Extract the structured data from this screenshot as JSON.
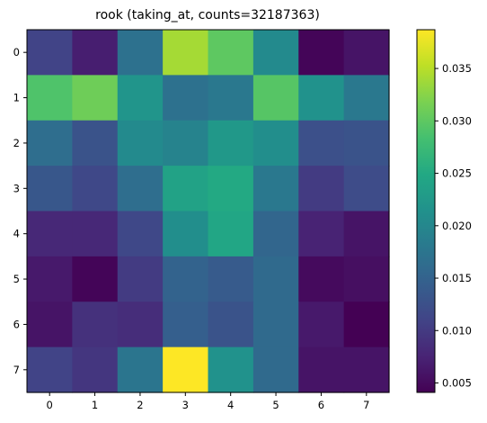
{
  "chart_data": {
    "type": "heatmap",
    "title": "rook (taking_at, counts=32187363)",
    "xlabel": "",
    "ylabel": "",
    "colormap": "viridis",
    "x_ticks": [
      "0",
      "1",
      "2",
      "3",
      "4",
      "5",
      "6",
      "7"
    ],
    "y_ticks": [
      "0",
      "1",
      "2",
      "3",
      "4",
      "5",
      "6",
      "7"
    ],
    "color_range": [
      0.0041,
      0.0387
    ],
    "colorbar_ticks": [
      0.005,
      0.01,
      0.015,
      0.02,
      0.025,
      0.03,
      0.035
    ],
    "colorbar_tick_labels": [
      "0.005",
      "0.010",
      "0.015",
      "0.020",
      "0.025",
      "0.030",
      "0.035"
    ],
    "values": [
      [
        0.011,
        0.007,
        0.017,
        0.034,
        0.03,
        0.0205,
        0.0045,
        0.006
      ],
      [
        0.029,
        0.031,
        0.022,
        0.017,
        0.018,
        0.0295,
        0.0215,
        0.018
      ],
      [
        0.0165,
        0.013,
        0.0205,
        0.0195,
        0.0225,
        0.021,
        0.0125,
        0.013
      ],
      [
        0.0135,
        0.0115,
        0.0165,
        0.024,
        0.025,
        0.018,
        0.01,
        0.012
      ],
      [
        0.008,
        0.008,
        0.0115,
        0.021,
        0.0245,
        0.0155,
        0.0075,
        0.006
      ],
      [
        0.0065,
        0.0045,
        0.01,
        0.015,
        0.014,
        0.016,
        0.005,
        0.0055
      ],
      [
        0.006,
        0.009,
        0.0085,
        0.0145,
        0.013,
        0.016,
        0.0065,
        0.0041
      ],
      [
        0.011,
        0.0095,
        0.0175,
        0.0387,
        0.0215,
        0.016,
        0.006,
        0.006
      ]
    ]
  }
}
